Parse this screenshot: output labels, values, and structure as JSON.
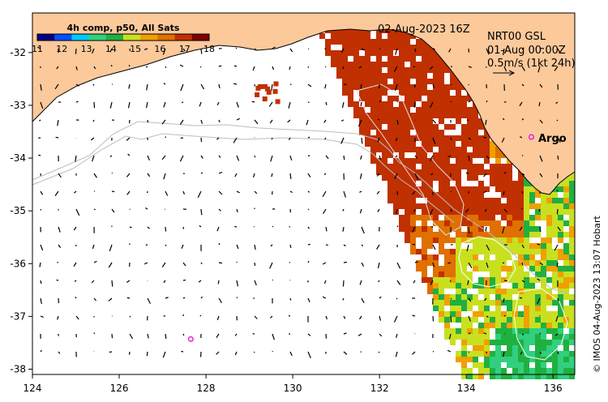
{
  "map": {
    "date_label": "02-Aug-2023 16Z",
    "product_label": "4h comp, p50, All Sats",
    "current_info": [
      "NRT00 GSL",
      "01-Aug 00:00Z",
      "0.5m/s (1kt 24h)"
    ],
    "argo_label": "Argo",
    "credit": "© IMOS 04-Aug-2023 13:07 Hobart",
    "colors": {
      "land": "#fcc99b",
      "ocean": "#ffffff",
      "frame": "#000000",
      "argo_marker": "#e020e0",
      "contour": "#c8c8c8"
    },
    "colorbar": {
      "min": 11,
      "max": 18,
      "tick_labels": [
        "11",
        "12",
        "13",
        "14",
        "15",
        "16",
        "17",
        "18"
      ],
      "colors": [
        "#000080",
        "#0050ff",
        "#00c8ff",
        "#30d080",
        "#20b040",
        "#c8e020",
        "#f0a000",
        "#e07000",
        "#c03000",
        "#800000"
      ]
    },
    "x_axis": {
      "min": 124,
      "max": 136.5,
      "ticks": [
        124,
        126,
        128,
        130,
        132,
        134,
        136
      ],
      "tick_labels": [
        "124",
        "126",
        "128",
        "130",
        "132",
        "134",
        "136"
      ]
    },
    "y_axis": {
      "min": -38.1,
      "max": -31.25,
      "ticks": [
        -32,
        -33,
        -34,
        -35,
        -36,
        -37,
        -38
      ],
      "tick_labels": [
        "-32",
        "-33",
        "-34",
        "-35",
        "-36",
        "-37",
        "-38"
      ]
    },
    "argo_floats": [
      {
        "lon": 135.5,
        "lat": -33.6
      },
      {
        "lon": 127.65,
        "lat": -37.43
      }
    ]
  }
}
